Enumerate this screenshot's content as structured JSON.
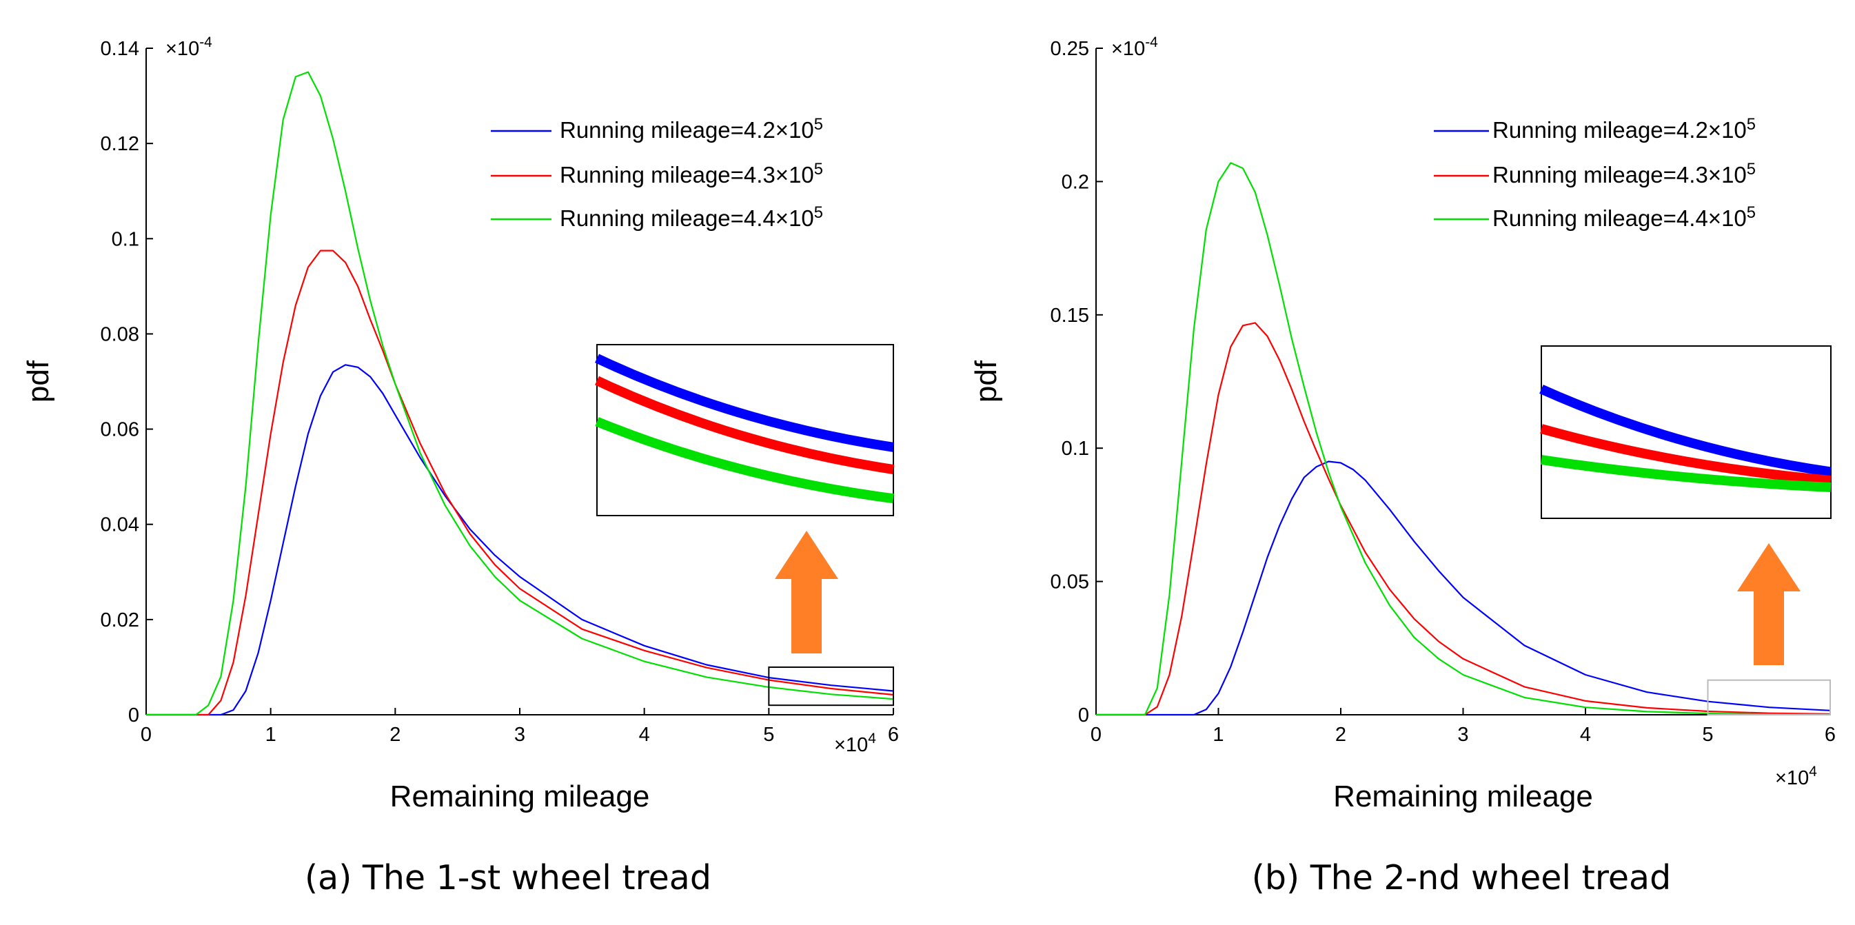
{
  "chart_data": [
    {
      "type": "line",
      "caption": "(a) The 1-st wheel tread",
      "xlabel": "Remaining mileage",
      "ylabel": "pdf",
      "x_multiplier": "×10",
      "x_multiplier_exp": "4",
      "y_multiplier": "×10",
      "y_multiplier_exp": "-4",
      "xlim": [
        0,
        6
      ],
      "ylim": [
        0,
        0.14
      ],
      "xticks": [
        "0",
        "1",
        "2",
        "3",
        "4",
        "5",
        "6"
      ],
      "yticks": [
        "0",
        "0.02",
        "0.04",
        "0.06",
        "0.08",
        "0.1",
        "0.12",
        "0.14"
      ],
      "legend_position": "top-right",
      "inset": {
        "region_x": [
          5,
          6
        ],
        "region_y": [
          0.002,
          0.01
        ],
        "arrow_color": "#FF7F27"
      },
      "series": [
        {
          "name": "Running mileage=4.2×10",
          "exp": "5",
          "color": "#0000FF",
          "x": [
            0.6,
            0.7,
            0.8,
            0.9,
            1.0,
            1.1,
            1.2,
            1.3,
            1.4,
            1.5,
            1.6,
            1.7,
            1.8,
            1.9,
            2.0,
            2.2,
            2.4,
            2.6,
            2.8,
            3.0,
            3.5,
            4.0,
            4.5,
            5.0,
            5.5,
            6.0
          ],
          "y": [
            0,
            0.001,
            0.005,
            0.013,
            0.024,
            0.036,
            0.048,
            0.059,
            0.067,
            0.072,
            0.0735,
            0.073,
            0.071,
            0.0675,
            0.063,
            0.054,
            0.046,
            0.039,
            0.0335,
            0.029,
            0.02,
            0.0145,
            0.0105,
            0.0078,
            0.0062,
            0.005
          ]
        },
        {
          "name": "Running mileage=4.3×10",
          "exp": "5",
          "color": "#FF0000",
          "x": [
            0.5,
            0.6,
            0.7,
            0.8,
            0.9,
            1.0,
            1.1,
            1.2,
            1.3,
            1.4,
            1.5,
            1.6,
            1.7,
            1.8,
            1.9,
            2.0,
            2.2,
            2.4,
            2.6,
            2.8,
            3.0,
            3.5,
            4.0,
            4.5,
            5.0,
            5.5,
            6.0
          ],
          "y": [
            0,
            0.003,
            0.011,
            0.025,
            0.042,
            0.059,
            0.074,
            0.086,
            0.094,
            0.0975,
            0.0975,
            0.095,
            0.09,
            0.083,
            0.0765,
            0.0695,
            0.057,
            0.0465,
            0.038,
            0.0315,
            0.0265,
            0.018,
            0.0135,
            0.0099,
            0.0073,
            0.0055,
            0.0042
          ]
        },
        {
          "name": "Running mileage=4.4×10",
          "exp": "5",
          "color": "#00E000",
          "x": [
            0.4,
            0.5,
            0.6,
            0.7,
            0.8,
            0.9,
            1.0,
            1.1,
            1.2,
            1.3,
            1.4,
            1.5,
            1.6,
            1.7,
            1.8,
            1.9,
            2.0,
            2.2,
            2.4,
            2.6,
            2.8,
            3.0,
            3.5,
            4.0,
            4.5,
            5.0,
            5.5,
            6.0
          ],
          "y": [
            0,
            0.002,
            0.008,
            0.024,
            0.048,
            0.078,
            0.105,
            0.125,
            0.134,
            0.135,
            0.13,
            0.121,
            0.11,
            0.098,
            0.087,
            0.0775,
            0.0695,
            0.055,
            0.044,
            0.0355,
            0.029,
            0.024,
            0.016,
            0.0112,
            0.0079,
            0.0058,
            0.0043,
            0.0033
          ]
        }
      ]
    },
    {
      "type": "line",
      "caption": "(b) The 2-nd wheel tread",
      "xlabel": "Remaining mileage",
      "ylabel": "pdf",
      "x_multiplier": "×10",
      "x_multiplier_exp": "4",
      "y_multiplier": "×10",
      "y_multiplier_exp": "-4",
      "xlim": [
        0,
        6
      ],
      "ylim": [
        0,
        0.25
      ],
      "xticks": [
        "0",
        "1",
        "2",
        "3",
        "4",
        "5",
        "6"
      ],
      "yticks": [
        "0",
        "0.05",
        "0.1",
        "0.15",
        "0.2",
        "0.25"
      ],
      "legend_position": "top-right",
      "inset": {
        "region_x": [
          5,
          6
        ],
        "region_y": [
          0.0,
          0.013
        ],
        "arrow_color": "#FF7F27"
      },
      "series": [
        {
          "name": "Running mileage=4.2×10",
          "exp": "5",
          "color": "#0000FF",
          "x": [
            0.8,
            0.9,
            1.0,
            1.1,
            1.2,
            1.3,
            1.4,
            1.5,
            1.6,
            1.7,
            1.8,
            1.9,
            2.0,
            2.1,
            2.2,
            2.4,
            2.6,
            2.8,
            3.0,
            3.5,
            4.0,
            4.5,
            5.0,
            5.5,
            6.0
          ],
          "y": [
            0,
            0.002,
            0.008,
            0.018,
            0.031,
            0.045,
            0.059,
            0.071,
            0.081,
            0.089,
            0.093,
            0.095,
            0.0945,
            0.092,
            0.088,
            0.077,
            0.065,
            0.054,
            0.044,
            0.026,
            0.015,
            0.0085,
            0.005,
            0.0028,
            0.0016
          ]
        },
        {
          "name": "Running mileage=4.3×10",
          "exp": "5",
          "color": "#FF0000",
          "x": [
            0.4,
            0.5,
            0.6,
            0.7,
            0.8,
            0.9,
            1.0,
            1.1,
            1.2,
            1.3,
            1.4,
            1.5,
            1.6,
            1.7,
            1.8,
            1.9,
            2.0,
            2.2,
            2.4,
            2.6,
            2.8,
            3.0,
            3.5,
            4.0,
            4.5,
            5.0,
            5.5,
            6.0
          ],
          "y": [
            0,
            0.003,
            0.015,
            0.037,
            0.065,
            0.094,
            0.12,
            0.138,
            0.146,
            0.147,
            0.142,
            0.133,
            0.122,
            0.11,
            0.099,
            0.0885,
            0.0785,
            0.061,
            0.047,
            0.036,
            0.0275,
            0.021,
            0.0105,
            0.0052,
            0.0026,
            0.0013,
            0.0006,
            0.0003
          ]
        },
        {
          "name": "Running mileage=4.4×10",
          "exp": "5",
          "color": "#00E000",
          "x": [
            0.4,
            0.5,
            0.6,
            0.7,
            0.8,
            0.9,
            1.0,
            1.1,
            1.2,
            1.3,
            1.4,
            1.5,
            1.6,
            1.7,
            1.8,
            1.9,
            2.0,
            2.2,
            2.4,
            2.6,
            2.8,
            3.0,
            3.5,
            4.0,
            4.5,
            5.0,
            5.5,
            6.0
          ],
          "y": [
            0,
            0.01,
            0.045,
            0.095,
            0.145,
            0.182,
            0.2,
            0.207,
            0.205,
            0.196,
            0.18,
            0.161,
            0.141,
            0.123,
            0.106,
            0.091,
            0.078,
            0.057,
            0.041,
            0.029,
            0.021,
            0.015,
            0.0065,
            0.0028,
            0.0012,
            0.0005,
            0.0002,
            0.0001
          ]
        }
      ]
    }
  ]
}
